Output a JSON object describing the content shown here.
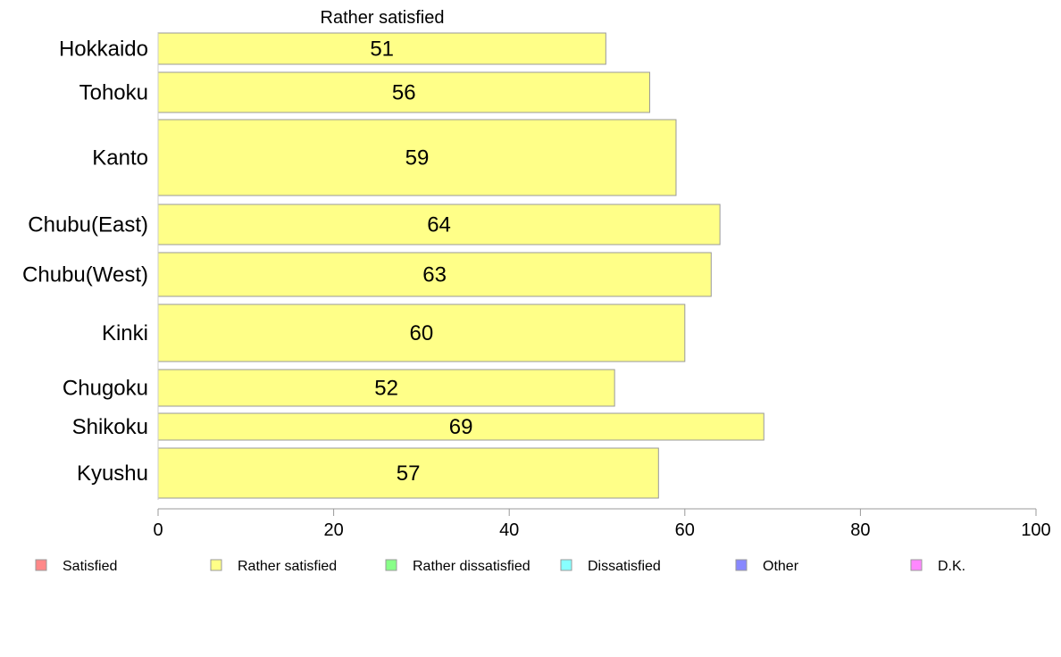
{
  "chart_data": {
    "type": "bar",
    "orientation": "horizontal",
    "title": "Rather satisfied",
    "categories": [
      "Hokkaido",
      "Tohoku",
      "Kanto",
      "Chubu(East)",
      "Chubu(West)",
      "Kinki",
      "Chugoku",
      "Shikoku",
      "Kyushu"
    ],
    "values": [
      51,
      56,
      59,
      64,
      63,
      60,
      52,
      69,
      57
    ],
    "value_labels": [
      "51",
      "56",
      "59",
      "64",
      "63",
      "60",
      "52",
      "69",
      "57"
    ],
    "xlim": [
      0,
      100
    ],
    "x_ticks": [
      0,
      20,
      40,
      60,
      80,
      100
    ],
    "x_tick_labels": [
      "0",
      "20",
      "40",
      "60",
      "80",
      "100"
    ],
    "grid": false,
    "bar_color": "#ffff88",
    "bar_edge_color": "#999999",
    "legend_position": "bottom",
    "legend": [
      {
        "label": "Satisfied",
        "color": "#ff8888"
      },
      {
        "label": "Rather satisfied",
        "color": "#ffff88"
      },
      {
        "label": "Rather dissatisfied",
        "color": "#88ff88"
      },
      {
        "label": "Dissatisfied",
        "color": "#88ffff"
      },
      {
        "label": "Other",
        "color": "#8888ff"
      },
      {
        "label": "D.K.",
        "color": "#ff88ff"
      }
    ]
  }
}
